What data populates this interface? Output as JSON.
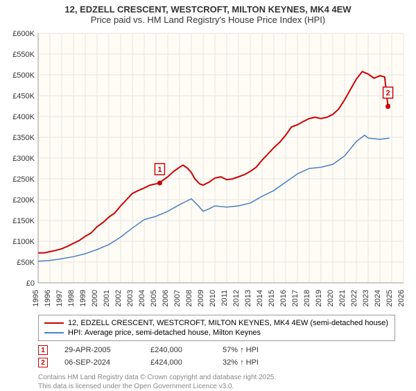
{
  "title_line1": "12, EDZELL CRESCENT, WESTCROFT, MILTON KEYNES, MK4 4EW",
  "title_line2": "Price paid vs. HM Land Registry's House Price Index (HPI)",
  "chart": {
    "type": "line",
    "background_color": "#fffcf5",
    "grid_color": "#e5e5e5",
    "x_min": 1995,
    "x_max": 2026,
    "y_min": 0,
    "y_max": 600000,
    "y_ticks": [
      0,
      50000,
      100000,
      150000,
      200000,
      250000,
      300000,
      350000,
      400000,
      450000,
      500000,
      550000,
      600000
    ],
    "y_tick_labels": [
      "£0",
      "£50K",
      "£100K",
      "£150K",
      "£200K",
      "£250K",
      "£300K",
      "£350K",
      "£400K",
      "£450K",
      "£500K",
      "£550K",
      "£600K"
    ],
    "x_ticks": [
      1995,
      1996,
      1997,
      1998,
      1999,
      2000,
      2001,
      2002,
      2003,
      2004,
      2005,
      2006,
      2007,
      2008,
      2009,
      2010,
      2011,
      2012,
      2013,
      2014,
      2015,
      2016,
      2017,
      2018,
      2019,
      2020,
      2021,
      2022,
      2023,
      2024,
      2025,
      2026
    ],
    "series1": {
      "name": "12, EDZELL CRESCENT, WESTCROFT, MILTON KEYNES, MK4 4EW (semi-detached house)",
      "color": "#cc0000",
      "line_width": 2,
      "data": [
        [
          1995,
          72000
        ],
        [
          1995.5,
          72000
        ],
        [
          1996,
          75000
        ],
        [
          1996.5,
          78000
        ],
        [
          1997,
          82000
        ],
        [
          1997.5,
          88000
        ],
        [
          1998,
          95000
        ],
        [
          1998.5,
          102000
        ],
        [
          1999,
          112000
        ],
        [
          1999.5,
          120000
        ],
        [
          2000,
          135000
        ],
        [
          2000.5,
          145000
        ],
        [
          2001,
          158000
        ],
        [
          2001.5,
          168000
        ],
        [
          2002,
          185000
        ],
        [
          2002.5,
          200000
        ],
        [
          2003,
          215000
        ],
        [
          2003.5,
          222000
        ],
        [
          2004,
          228000
        ],
        [
          2004.5,
          235000
        ],
        [
          2005,
          238000
        ],
        [
          2005.32,
          240000
        ],
        [
          2005.5,
          245000
        ],
        [
          2006,
          255000
        ],
        [
          2006.5,
          268000
        ],
        [
          2007,
          278000
        ],
        [
          2007.3,
          283000
        ],
        [
          2007.7,
          275000
        ],
        [
          2008,
          265000
        ],
        [
          2008.3,
          250000
        ],
        [
          2008.7,
          238000
        ],
        [
          2009,
          235000
        ],
        [
          2009.5,
          242000
        ],
        [
          2010,
          252000
        ],
        [
          2010.5,
          255000
        ],
        [
          2011,
          248000
        ],
        [
          2011.5,
          250000
        ],
        [
          2012,
          255000
        ],
        [
          2012.5,
          260000
        ],
        [
          2013,
          268000
        ],
        [
          2013.5,
          278000
        ],
        [
          2014,
          295000
        ],
        [
          2014.5,
          310000
        ],
        [
          2015,
          325000
        ],
        [
          2015.5,
          338000
        ],
        [
          2016,
          355000
        ],
        [
          2016.5,
          375000
        ],
        [
          2017,
          380000
        ],
        [
          2017.5,
          388000
        ],
        [
          2018,
          395000
        ],
        [
          2018.5,
          398000
        ],
        [
          2019,
          395000
        ],
        [
          2019.5,
          398000
        ],
        [
          2020,
          405000
        ],
        [
          2020.5,
          418000
        ],
        [
          2021,
          440000
        ],
        [
          2021.5,
          465000
        ],
        [
          2022,
          490000
        ],
        [
          2022.5,
          508000
        ],
        [
          2023,
          502000
        ],
        [
          2023.5,
          492000
        ],
        [
          2024,
          498000
        ],
        [
          2024.4,
          495000
        ],
        [
          2024.68,
          424000
        ],
        [
          2024.8,
          430000
        ]
      ]
    },
    "series2": {
      "name": "HPI: Average price, semi-detached house, Milton Keynes",
      "color": "#4a7fc4",
      "line_width": 1.5,
      "data": [
        [
          1995,
          52000
        ],
        [
          1996,
          54000
        ],
        [
          1997,
          58000
        ],
        [
          1998,
          63000
        ],
        [
          1999,
          70000
        ],
        [
          2000,
          80000
        ],
        [
          2001,
          92000
        ],
        [
          2002,
          110000
        ],
        [
          2003,
          132000
        ],
        [
          2004,
          152000
        ],
        [
          2005,
          160000
        ],
        [
          2006,
          172000
        ],
        [
          2007,
          188000
        ],
        [
          2007.5,
          195000
        ],
        [
          2008,
          202000
        ],
        [
          2008.5,
          188000
        ],
        [
          2009,
          172000
        ],
        [
          2009.5,
          178000
        ],
        [
          2010,
          185000
        ],
        [
          2011,
          182000
        ],
        [
          2012,
          185000
        ],
        [
          2013,
          192000
        ],
        [
          2014,
          208000
        ],
        [
          2015,
          222000
        ],
        [
          2016,
          242000
        ],
        [
          2017,
          262000
        ],
        [
          2018,
          275000
        ],
        [
          2019,
          278000
        ],
        [
          2020,
          285000
        ],
        [
          2021,
          305000
        ],
        [
          2022,
          340000
        ],
        [
          2022.7,
          355000
        ],
        [
          2023,
          348000
        ],
        [
          2024,
          345000
        ],
        [
          2024.8,
          348000
        ]
      ]
    },
    "markers": [
      {
        "n": "1",
        "x": 2005.32,
        "y": 240000
      },
      {
        "n": "2",
        "x": 2024.68,
        "y": 424000
      }
    ]
  },
  "legend": {
    "item1_label": "12, EDZELL CRESCENT, WESTCROFT, MILTON KEYNES, MK4 4EW (semi-detached house)",
    "item2_label": "HPI: Average price, semi-detached house, Milton Keynes"
  },
  "sales": [
    {
      "n": "1",
      "date": "29-APR-2005",
      "price": "£240,000",
      "pct": "57% ↑ HPI"
    },
    {
      "n": "2",
      "date": "06-SEP-2024",
      "price": "£424,000",
      "pct": "32% ↑ HPI"
    }
  ],
  "attribution_line1": "Contains HM Land Registry data © Crown copyright and database right 2025.",
  "attribution_line2": "This data is licensed under the Open Government Licence v3.0."
}
